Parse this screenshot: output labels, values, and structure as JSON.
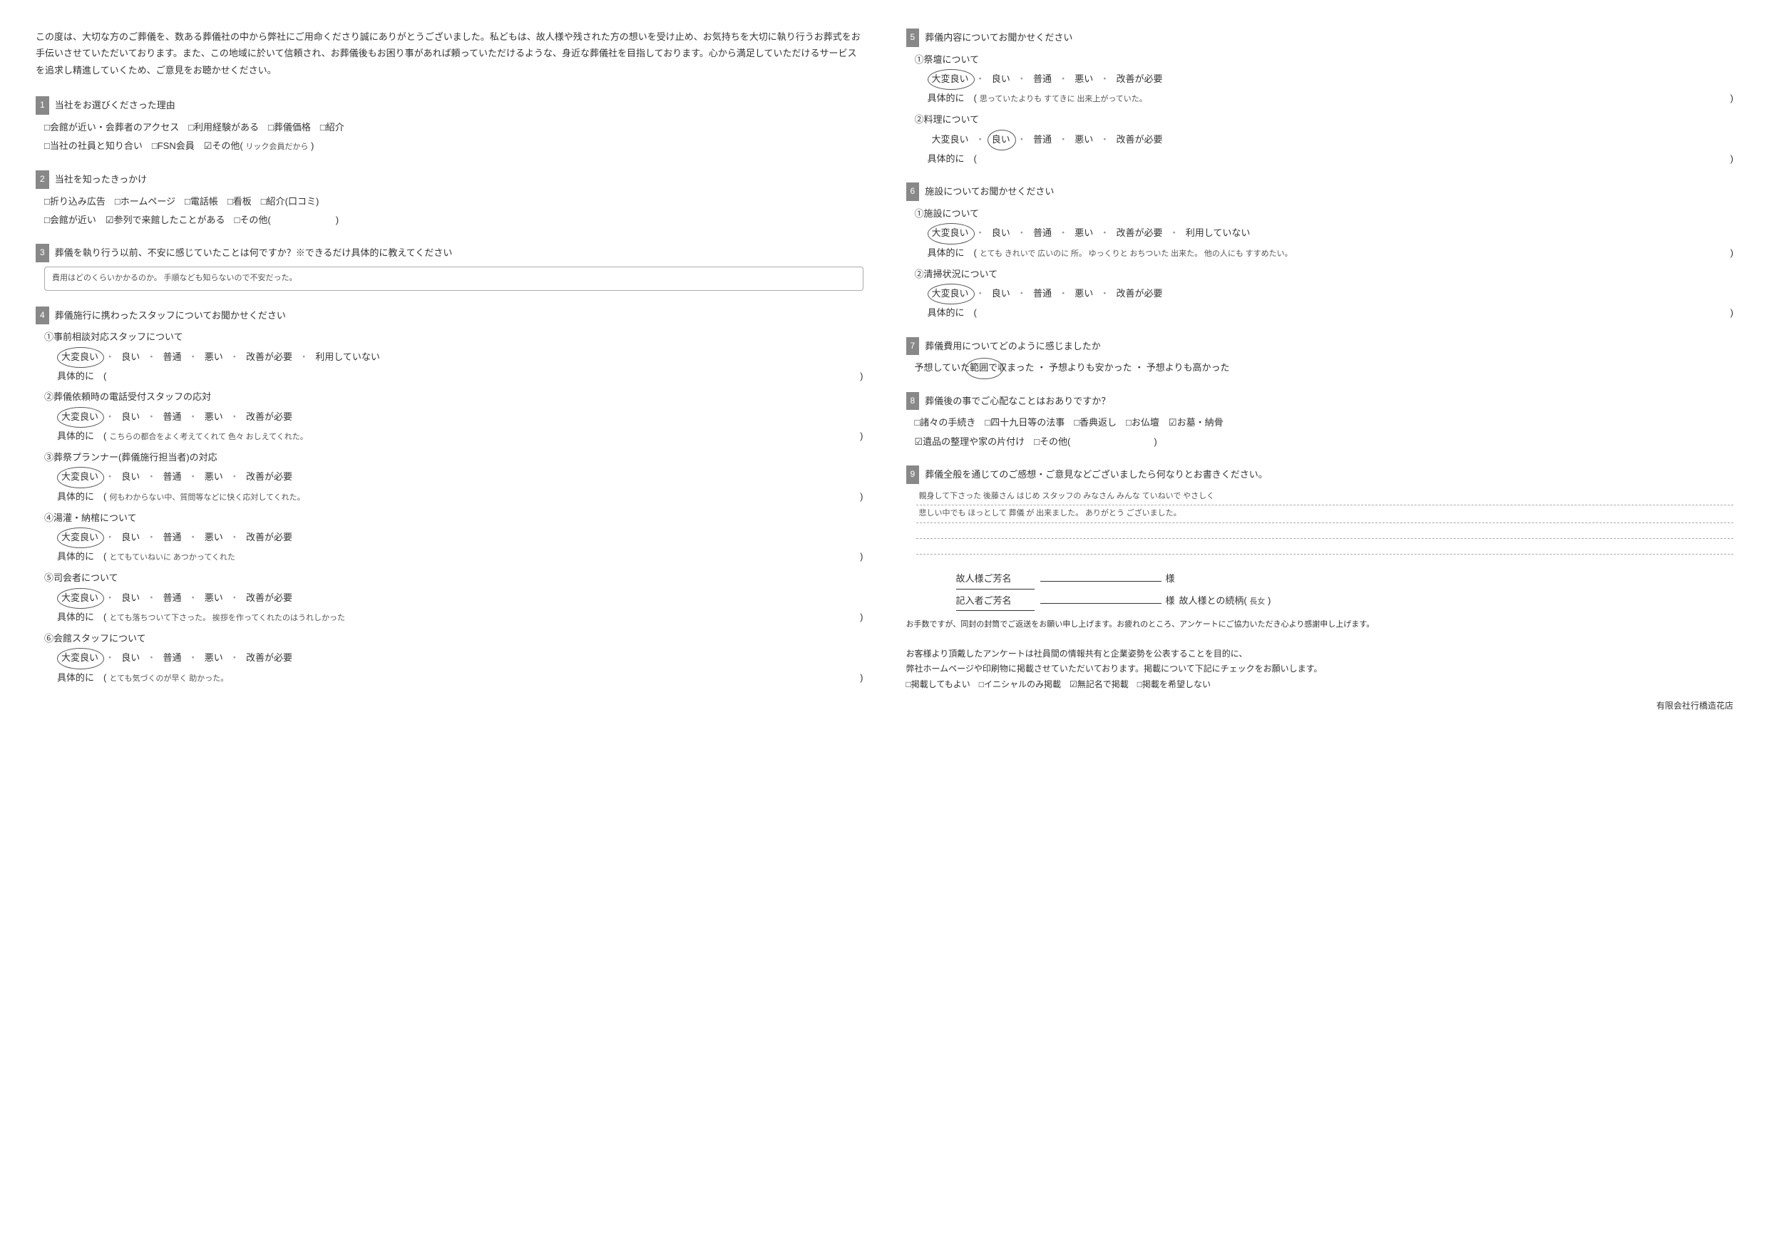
{
  "intro": "この度は、大切な方のご葬儀を、数ある葬儀社の中から弊社にご用命くださり誠にありがとうございました。私どもは、故人様や残された方の想いを受け止め、お気持ちを大切に執り行うお葬式をお手伝いさせていただいております。また、この地域に於いて信頼され、お葬儀後もお困り事があれば頼っていただけるような、身近な葬儀社を目指しております。心から満足していただけるサービスを追求し精進していくため、ご意見をお聴かせください。",
  "q1": {
    "num": "1",
    "title": "当社をお選びくださった理由",
    "line1": "□会館が近い・会葬者のアクセス　□利用経験がある　□葬儀価格　□紹介",
    "line2_a": "□当社の社員と知り合い　□FSN会員　☑その他(",
    "line2_hand": "リック会員だから",
    "line2_b": ")"
  },
  "q2": {
    "num": "2",
    "title": "当社を知ったきっかけ",
    "line1": "□折り込み広告　□ホームページ　□電話帳　□看板　□紹介(口コミ)",
    "line2": "□会館が近い　☑参列で来館したことがある　□その他(　　　　　　　)"
  },
  "q3": {
    "num": "3",
    "title": "葬儀を執り行う以前、不安に感じていたことは何ですか？※できるだけ具体的に教えてください",
    "note": "費用はどのくらいかかるのか。  手順なども知らないので不安だった。"
  },
  "q4": {
    "num": "4",
    "title": "葬儀施行に携わったスタッフについてお聞かせください",
    "items": [
      {
        "label": "①事前相談対応スタッフについて",
        "ratings": [
          "大変良い",
          "良い",
          "普通",
          "悪い",
          "改善が必要",
          "利用していない"
        ],
        "circled": 0,
        "detail": ""
      },
      {
        "label": "②葬儀依頼時の電話受付スタッフの応対",
        "ratings": [
          "大変良い",
          "良い",
          "普通",
          "悪い",
          "改善が必要"
        ],
        "circled": 0,
        "detail": "こちらの都合をよく考えてくれて 色々 おしえてくれた。"
      },
      {
        "label": "③葬祭プランナー(葬儀施行担当者)の対応",
        "ratings": [
          "大変良い",
          "良い",
          "普通",
          "悪い",
          "改善が必要"
        ],
        "circled": 0,
        "detail": "何もわからない中、質問等などに快く応対してくれた。"
      },
      {
        "label": "④湯灌・納棺について",
        "ratings": [
          "大変良い",
          "良い",
          "普通",
          "悪い",
          "改善が必要"
        ],
        "circled": 0,
        "detail": "とてもていねいに あつかってくれた"
      },
      {
        "label": "⑤司会者について",
        "ratings": [
          "大変良い",
          "良い",
          "普通",
          "悪い",
          "改善が必要"
        ],
        "circled": 0,
        "detail": "とても落ちついて下さった。 挨拶を作ってくれたのはうれしかった"
      },
      {
        "label": "⑥会館スタッフについて",
        "ratings": [
          "大変良い",
          "良い",
          "普通",
          "悪い",
          "改善が必要"
        ],
        "circled": 0,
        "detail": "とても気づくのが早く 助かった。"
      }
    ],
    "detail_label": "具体的に　("
  },
  "q5": {
    "num": "5",
    "title": "葬儀内容についてお聞かせください",
    "items": [
      {
        "label": "①祭壇について",
        "ratings": [
          "大変良い",
          "良い",
          "普通",
          "悪い",
          "改善が必要"
        ],
        "circled": 0,
        "detail": "思っていたよりも すてきに 出来上がっていた。"
      },
      {
        "label": "②料理について",
        "ratings": [
          "大変良い",
          "良い",
          "普通",
          "悪い",
          "改善が必要"
        ],
        "circled": 1,
        "detail": ""
      }
    ],
    "detail_label": "具体的に　("
  },
  "q6": {
    "num": "6",
    "title": "施設についてお聞かせください",
    "items": [
      {
        "label": "①施設について",
        "ratings": [
          "大変良い",
          "良い",
          "普通",
          "悪い",
          "改善が必要",
          "利用していない"
        ],
        "circled": 0,
        "detail": "とても きれいで 広いのに 所。 ゆっくりと おちついた 出来た。 他の人にも すすめたい。"
      },
      {
        "label": "②清掃状況について",
        "ratings": [
          "大変良い",
          "良い",
          "普通",
          "悪い",
          "改善が必要"
        ],
        "circled": 0,
        "detail": ""
      }
    ],
    "detail_label": "具体的に　("
  },
  "q7": {
    "num": "7",
    "title": "葬儀費用についてどのように感じましたか",
    "options": "予想していた範囲で収まった ・ 予想よりも安かった ・ 予想よりも高かった",
    "circled_word": "範囲で"
  },
  "q8": {
    "num": "8",
    "title": "葬儀後の事でご心配なことはおありですか？",
    "line1": "□諸々の手続き　□四十九日等の法事　□香典返し　□お仏壇　☑お墓・納骨",
    "line2": "☑遺品の整理や家の片付け　□その他(　　　　　　　　　)"
  },
  "q9": {
    "num": "9",
    "title": "葬儀全般を通じてのご感想・ご意見などございましたら何なりとお書きください。",
    "lines": [
      "親身して下さった 後藤さん はじめ スタッフの みなさん みんな ていねいで やさしく",
      "悲しい中でも ほっとして 葬儀 が 出来ました。 ありがとう ございました。",
      "",
      ""
    ]
  },
  "signature": {
    "name_label": "故人様ご芳名",
    "writer_label": "記入者ご芳名",
    "suffix": "様",
    "relation_label": "故人様との続柄( ",
    "relation_value": "長女",
    "relation_close": " )"
  },
  "note": "お手数ですが、同封の封筒でご返送をお願い申し上げます。お疲れのところ、アンケートにご協力いただき心より感謝申し上げます。",
  "footer": {
    "line1": "お客様より頂戴したアンケートは社員間の情報共有と企業姿勢を公表することを目的に、",
    "line2": "弊社ホームページや印刷物に掲載させていただいております。掲載について下記にチェックをお願いします。",
    "line3": "□掲載してもよい　□イニシャルのみ掲載　☑無記名で掲載　□掲載を希望しない"
  },
  "company": "有限会社行橋造花店"
}
